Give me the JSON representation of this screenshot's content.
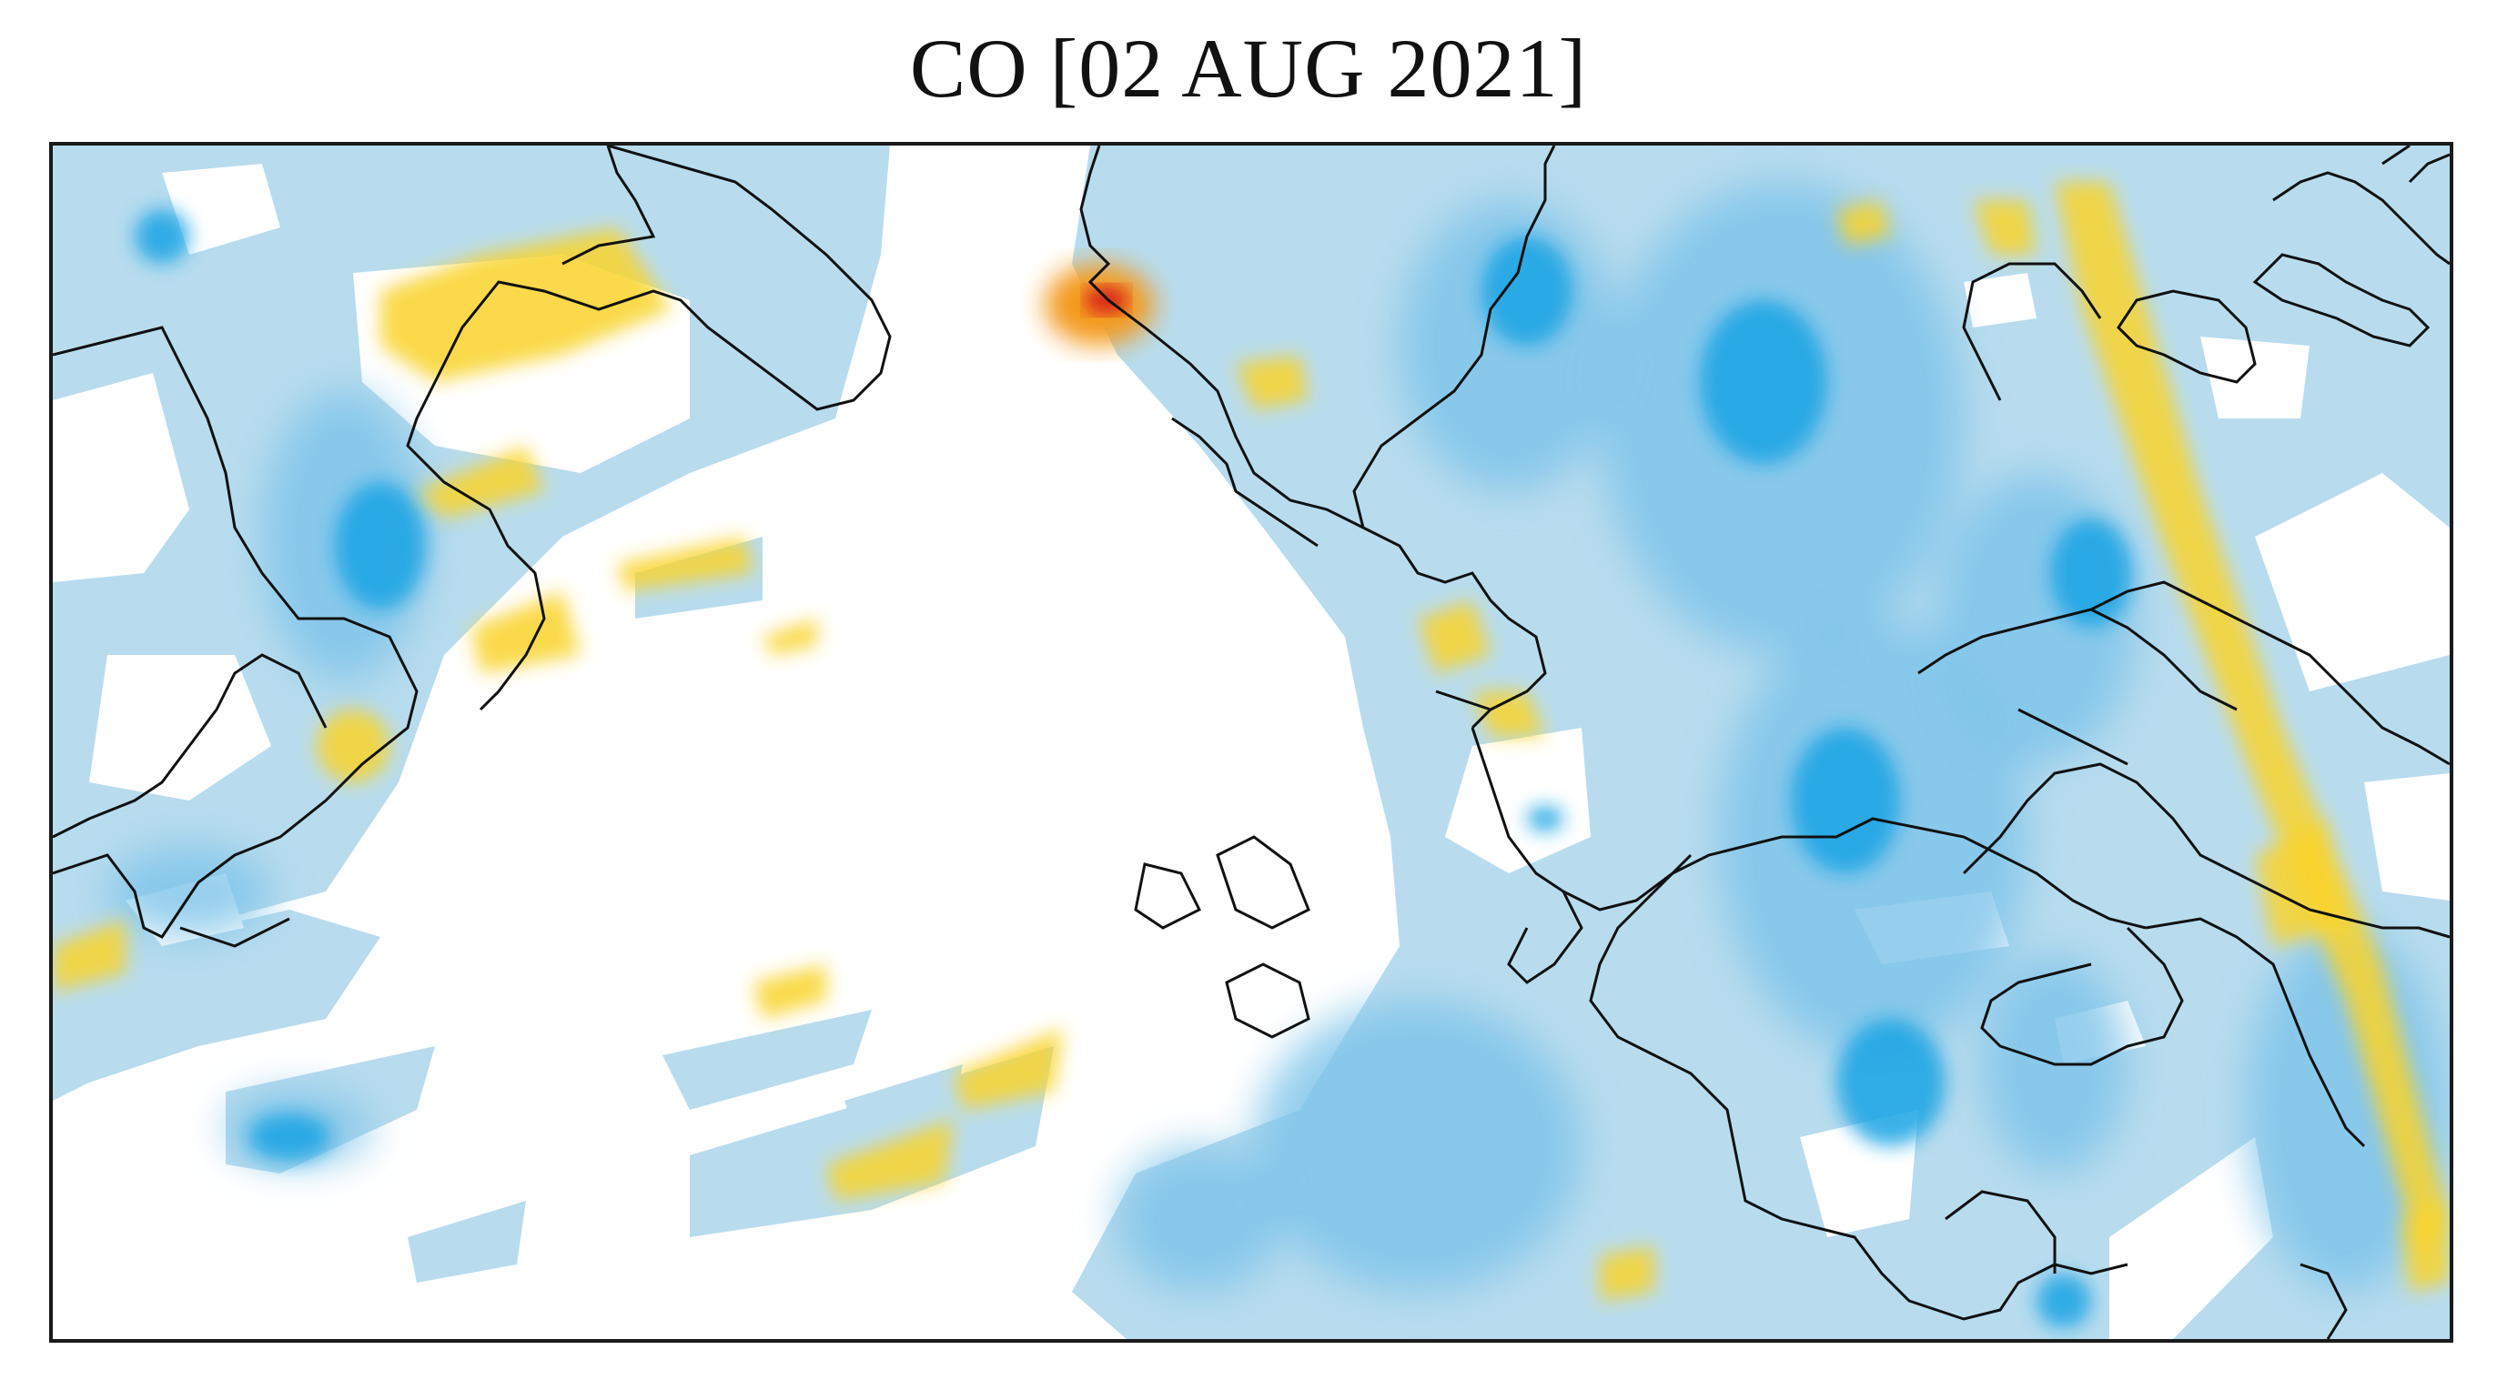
{
  "title": "CO [02 AUG 2021]",
  "map": {
    "variable": "CO",
    "date": "02 AUG 2021",
    "colors": {
      "no_data": "#ffffff",
      "low_light": "#b8dcee",
      "low_mid": "#7cc3ea",
      "low_deep": "#1aa3e4",
      "neutral_high": "#f6ec78",
      "high": "#f9d32a",
      "peak_orange": "#f39a1a",
      "peak_red": "#d8241c",
      "coastline": "#111111",
      "frame": "#1a1a1a"
    }
  }
}
